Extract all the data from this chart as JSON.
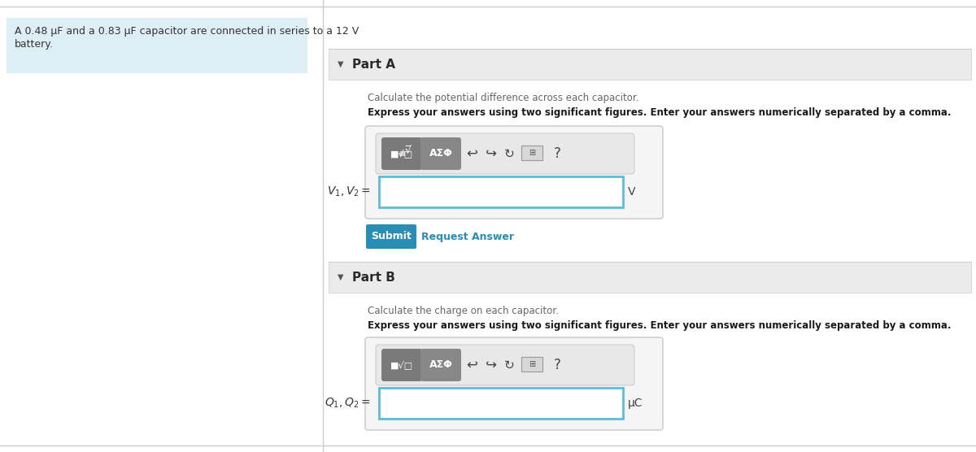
{
  "bg_color": "#ffffff",
  "left_panel_bg": "#deeef5",
  "left_panel_text_line1": "A 0.48 μF and a 0.83 μF capacitor are connected in series to a 12 V",
  "left_panel_text_line2": "battery.",
  "divider_color": "#cccccc",
  "part_a_header": "Part A",
  "part_a_instruction": "Calculate the potential difference across each capacitor.",
  "part_a_bold": "Express your answers using two significant figures. Enter your answers numerically separated by a comma.",
  "part_a_label": "$V_1, V_2 =$",
  "part_a_unit": "V",
  "part_b_header": "Part B",
  "part_b_instruction": "Calculate the charge on each capacitor.",
  "part_b_bold": "Express your answers using two significant figures. Enter your answers numerically separated by a comma.",
  "part_b_label": "$Q_1, Q_2 =$",
  "part_b_unit": "μC",
  "submit_bg": "#2a8db5",
  "submit_text": "Submit",
  "request_text": "Request Answer",
  "request_color": "#2a8db5",
  "section_header_bg": "#ebebeb",
  "toolbar_bg": "#7a7a7a",
  "toolbar_bg2": "#888888",
  "input_border_color": "#5bbcd6",
  "input_box_bg": "#f5f5f5",
  "toolbar_row_bg": "#e8e8e8",
  "top_line_color": "#cccccc"
}
